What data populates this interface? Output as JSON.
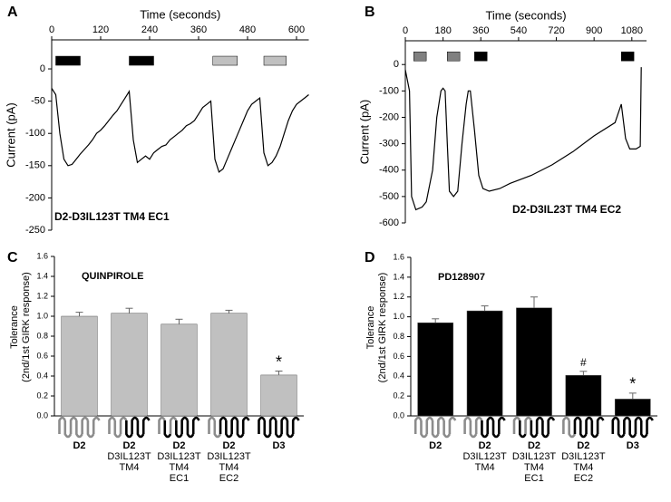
{
  "chart_data": [
    {
      "type": "line",
      "panel": "A",
      "xlabel": "Time (seconds)",
      "ylabel": "Current (pA)",
      "annotation": "D2-D3IL123T TM4 EC1",
      "xlim": [
        0,
        630
      ],
      "xticks": [
        0,
        120,
        240,
        360,
        480,
        600
      ],
      "ylim": [
        -250,
        45
      ],
      "yticks": [
        0,
        -50,
        -100,
        -150,
        -200,
        -250
      ],
      "color": "#000000",
      "drug_bars": [
        {
          "start": 10,
          "end": 70,
          "color": "#000000"
        },
        {
          "start": 190,
          "end": 250,
          "color": "#000000"
        },
        {
          "start": 395,
          "end": 455,
          "color": "#c0c0c0"
        },
        {
          "start": 520,
          "end": 575,
          "color": "#c0c0c0"
        }
      ],
      "x": [
        0,
        10,
        20,
        30,
        40,
        50,
        60,
        70,
        80,
        90,
        100,
        110,
        120,
        130,
        140,
        150,
        160,
        170,
        180,
        190,
        200,
        210,
        220,
        230,
        240,
        250,
        260,
        270,
        280,
        290,
        300,
        310,
        320,
        330,
        340,
        350,
        360,
        370,
        380,
        390,
        400,
        410,
        420,
        430,
        440,
        450,
        460,
        470,
        480,
        490,
        500,
        510,
        520,
        530,
        540,
        550,
        560,
        570,
        580,
        590,
        600,
        610,
        620,
        630
      ],
      "values": [
        -30,
        -40,
        -100,
        -140,
        -150,
        -148,
        -140,
        -132,
        -125,
        -118,
        -110,
        -100,
        -95,
        -88,
        -80,
        -72,
        -65,
        -55,
        -45,
        -35,
        -110,
        -145,
        -140,
        -135,
        -140,
        -130,
        -125,
        -120,
        -118,
        -110,
        -105,
        -100,
        -95,
        -88,
        -85,
        -80,
        -70,
        -60,
        -55,
        -50,
        -140,
        -160,
        -155,
        -140,
        -125,
        -110,
        -95,
        -80,
        -65,
        -55,
        -50,
        -45,
        -130,
        -150,
        -145,
        -135,
        -120,
        -100,
        -80,
        -65,
        -55,
        -50,
        -45,
        -40
      ]
    },
    {
      "type": "line",
      "panel": "B",
      "xlabel": "Time (seconds)",
      "ylabel": "Current (pA)",
      "annotation": "D2-D3IL23T TM4 EC2",
      "xlim": [
        0,
        1150
      ],
      "xticks": [
        0,
        180,
        360,
        540,
        720,
        900,
        1080
      ],
      "ylim": [
        -600,
        90
      ],
      "yticks": [
        0,
        -100,
        -200,
        -300,
        -400,
        -500,
        -600
      ],
      "color": "#000000",
      "drug_bars": [
        {
          "start": 40,
          "end": 100,
          "color": "#808080"
        },
        {
          "start": 200,
          "end": 260,
          "color": "#808080"
        },
        {
          "start": 330,
          "end": 390,
          "color": "#000000"
        },
        {
          "start": 1030,
          "end": 1090,
          "color": "#000000"
        }
      ],
      "x": [
        0,
        20,
        30,
        50,
        80,
        100,
        130,
        150,
        170,
        180,
        190,
        200,
        210,
        230,
        250,
        270,
        290,
        300,
        310,
        330,
        350,
        370,
        400,
        450,
        500,
        600,
        700,
        800,
        900,
        1000,
        1030,
        1050,
        1070,
        1100,
        1120,
        1125
      ],
      "values": [
        -20,
        -100,
        -500,
        -550,
        -540,
        -520,
        -400,
        -200,
        -100,
        -90,
        -100,
        -300,
        -480,
        -500,
        -480,
        -300,
        -150,
        -100,
        -100,
        -250,
        -420,
        -470,
        -480,
        -470,
        -450,
        -420,
        -380,
        -330,
        -270,
        -220,
        -150,
        -280,
        -320,
        -320,
        -310,
        -10
      ]
    },
    {
      "type": "bar",
      "panel": "C",
      "title": "QUINPIROLE",
      "ylabel": [
        "Tolerance",
        "(2nd/1st GIRK response)"
      ],
      "categories": [
        [
          "D2"
        ],
        [
          "D2",
          "D3IL123T",
          "TM4"
        ],
        [
          "D2",
          "D3IL123T",
          "TM4",
          "EC1"
        ],
        [
          "D2",
          "D3IL123T",
          "TM4",
          "EC2"
        ],
        [
          "D3"
        ]
      ],
      "values": [
        1.0,
        1.03,
        0.92,
        1.03,
        0.41
      ],
      "errors": [
        0.04,
        0.05,
        0.05,
        0.03,
        0.04
      ],
      "markers": [
        null,
        null,
        null,
        null,
        "*"
      ],
      "color": "#c0c0c0",
      "ylim": [
        0,
        1.6
      ],
      "yticks": [
        {
          "value": 0,
          "label": "0.0"
        },
        {
          "value": 0.2,
          "label": "0.2"
        },
        {
          "value": 0.4,
          "label": "0.4"
        },
        {
          "value": 0.6,
          "label": "0.6"
        },
        {
          "value": 0.8,
          "label": "0.8"
        },
        {
          "value": 1,
          "label": "1.0"
        },
        {
          "value": 1.2,
          "label": "1.2"
        },
        {
          "value": 1.4,
          "label": "1.4"
        },
        {
          "value": 1.6,
          "label": "1.6"
        }
      ]
    },
    {
      "type": "bar",
      "panel": "D",
      "title": "PD128907",
      "ylabel": [
        "Tolerance",
        "(2nd/1st GIRK response)"
      ],
      "categories": [
        [
          "D2"
        ],
        [
          "D2",
          "D3IL123T",
          "TM4"
        ],
        [
          "D2",
          "D3IL123T",
          "TM4",
          "EC1"
        ],
        [
          "D2",
          "D3IL123T",
          "TM4",
          "EC2"
        ],
        [
          "D3"
        ]
      ],
      "values": [
        0.94,
        1.06,
        1.09,
        0.41,
        0.17
      ],
      "errors": [
        0.04,
        0.05,
        0.11,
        0.04,
        0.06
      ],
      "markers": [
        null,
        null,
        null,
        "#",
        "*"
      ],
      "color": "#000000",
      "ylim": [
        0,
        1.6
      ],
      "yticks": [
        {
          "value": 0,
          "label": "0.0"
        },
        {
          "value": 0.2,
          "label": "0.2"
        },
        {
          "value": 0.4,
          "label": "0.4"
        },
        {
          "value": 0.6,
          "label": "0.6"
        },
        {
          "value": 0.8,
          "label": "0.8"
        },
        {
          "value": 1,
          "label": "1.0"
        },
        {
          "value": 1.2,
          "label": "1.2"
        },
        {
          "value": 1.4,
          "label": "1.4"
        },
        {
          "value": 1.6,
          "label": "1.6"
        }
      ]
    }
  ]
}
